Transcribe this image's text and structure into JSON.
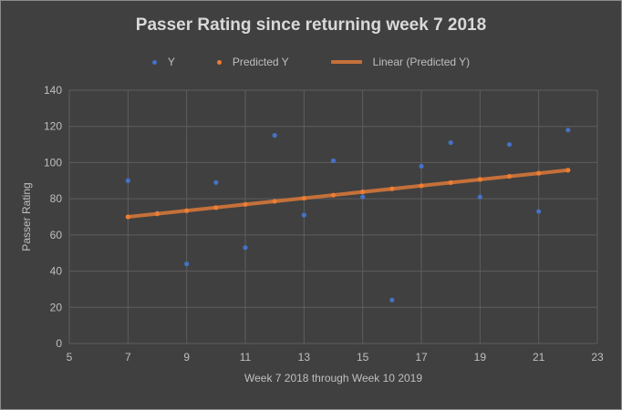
{
  "chart_data": {
    "type": "scatter",
    "title": "Passer Rating since returning week 7 2018",
    "xlabel": "Week 7 2018 through  Week 10 2019",
    "ylabel": "Passer Rating",
    "xlim": [
      5,
      23
    ],
    "ylim": [
      0,
      140
    ],
    "x_ticks": [
      5,
      7,
      9,
      11,
      13,
      15,
      17,
      19,
      21,
      23
    ],
    "y_ticks": [
      0,
      20,
      40,
      60,
      80,
      100,
      120,
      140
    ],
    "grid": true,
    "legend_position": "top",
    "series": [
      {
        "name": "Y",
        "kind": "points",
        "color": "#4472c4",
        "x": [
          7,
          8,
          9,
          10,
          11,
          12,
          13,
          14,
          15,
          16,
          17,
          18,
          19,
          20,
          21,
          22
        ],
        "y": [
          90,
          72,
          44,
          89,
          53,
          115,
          71,
          101,
          81,
          24,
          98,
          111,
          81,
          110,
          73,
          118
        ]
      },
      {
        "name": "Predicted Y",
        "kind": "points",
        "color": "#ed7d31",
        "x": [
          7,
          8,
          9,
          10,
          11,
          12,
          13,
          14,
          15,
          16,
          17,
          18,
          19,
          20,
          21,
          22
        ],
        "y": [
          70,
          71.7,
          73.4,
          75.1,
          76.9,
          78.6,
          80.3,
          82,
          83.8,
          85.5,
          87.2,
          88.9,
          90.7,
          92.4,
          94.1,
          95.8
        ]
      },
      {
        "name": "Linear (Predicted Y)",
        "kind": "trendline",
        "color": "#c5703a",
        "x": [
          7,
          22
        ],
        "y": [
          70,
          95.8
        ]
      }
    ]
  }
}
